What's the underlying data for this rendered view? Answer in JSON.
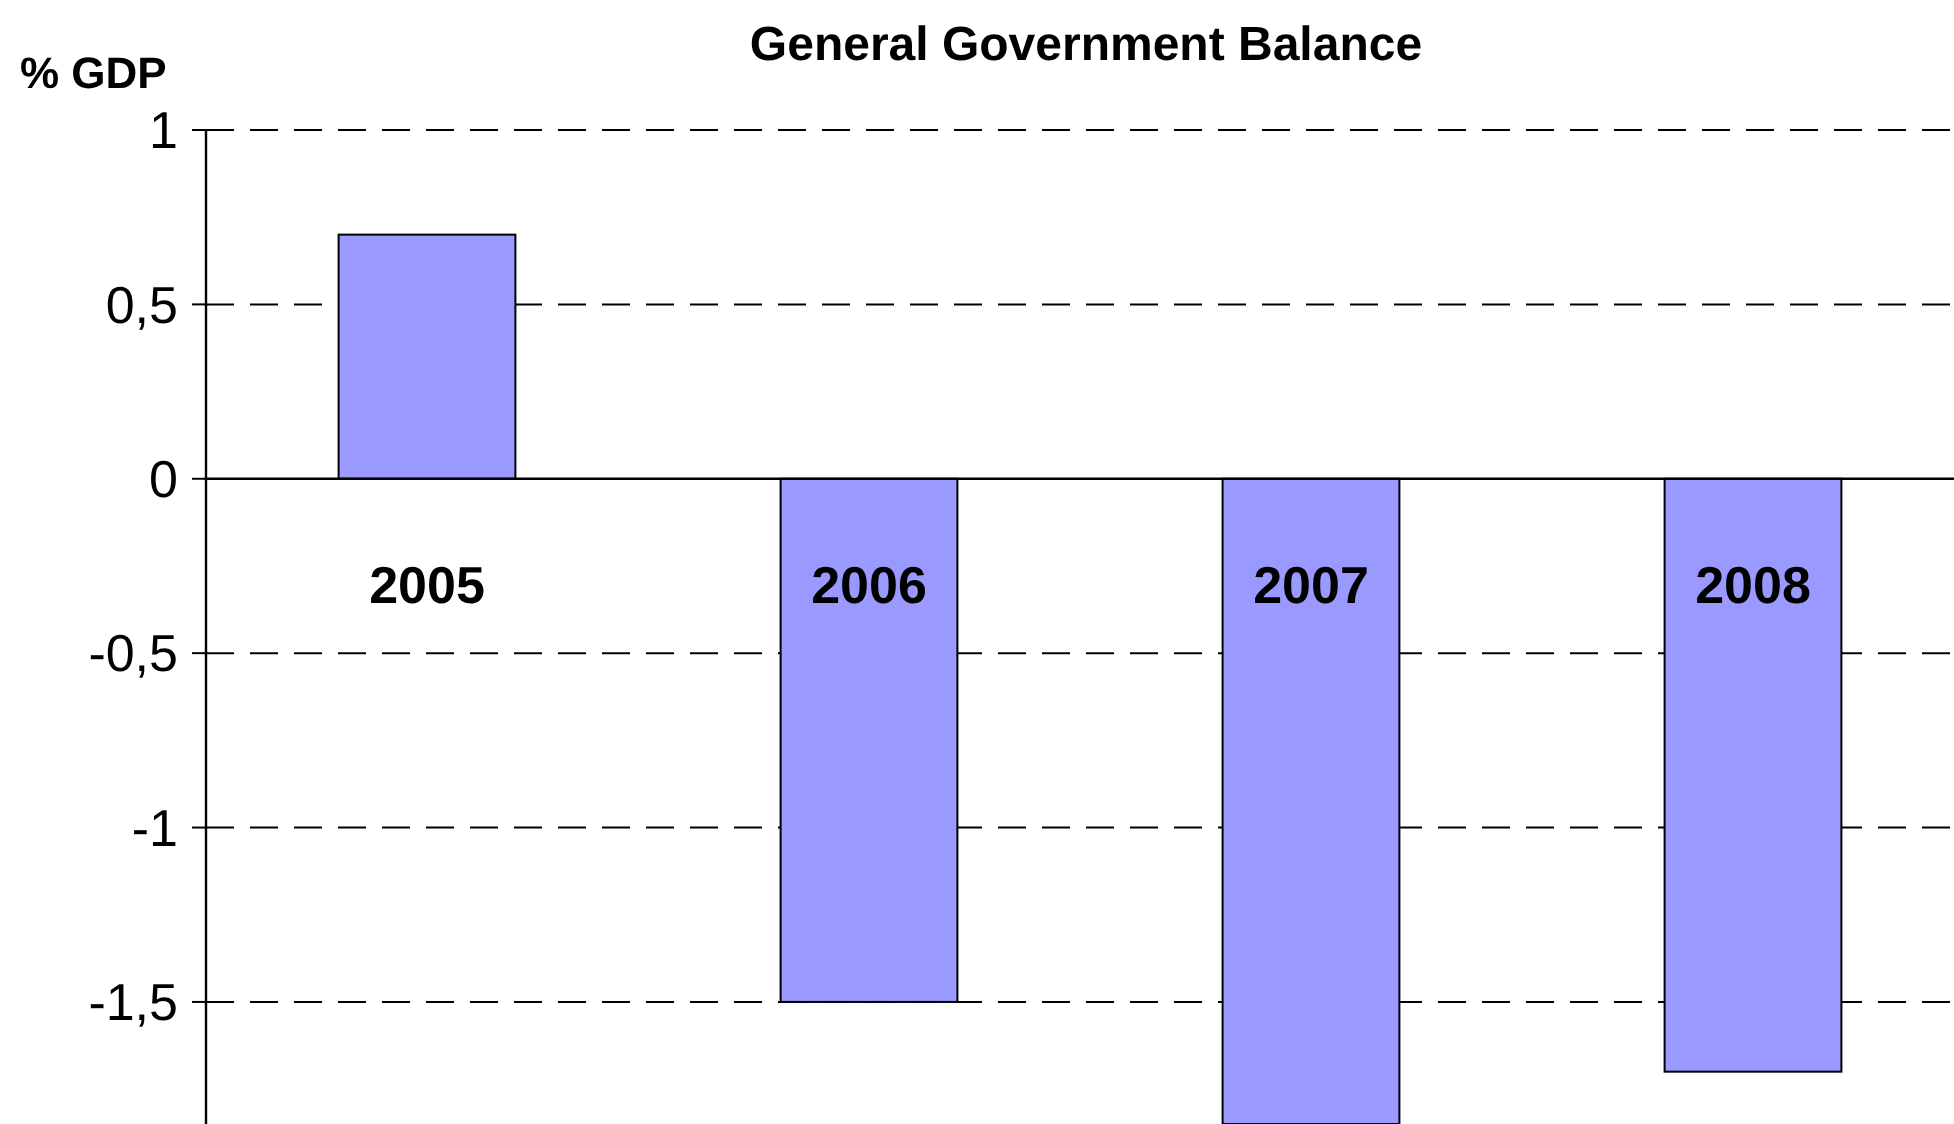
{
  "chart_data": {
    "type": "bar",
    "title": "General Government Balance",
    "ylabel": "% GDP",
    "categories": [
      "2005",
      "2006",
      "2007",
      "2008"
    ],
    "values": [
      0.7,
      -1.5,
      -1.85,
      -1.7
    ],
    "color": "#9999ff",
    "ylim": [
      -1.85,
      1
    ],
    "yticks": [
      {
        "value": -1.5,
        "label": "-1,5"
      },
      -1,
      {
        "value": -0.5,
        "label": "-0,5"
      },
      0,
      {
        "value": 0.5,
        "label": "0,5"
      },
      1
    ],
    "grid": "y"
  }
}
